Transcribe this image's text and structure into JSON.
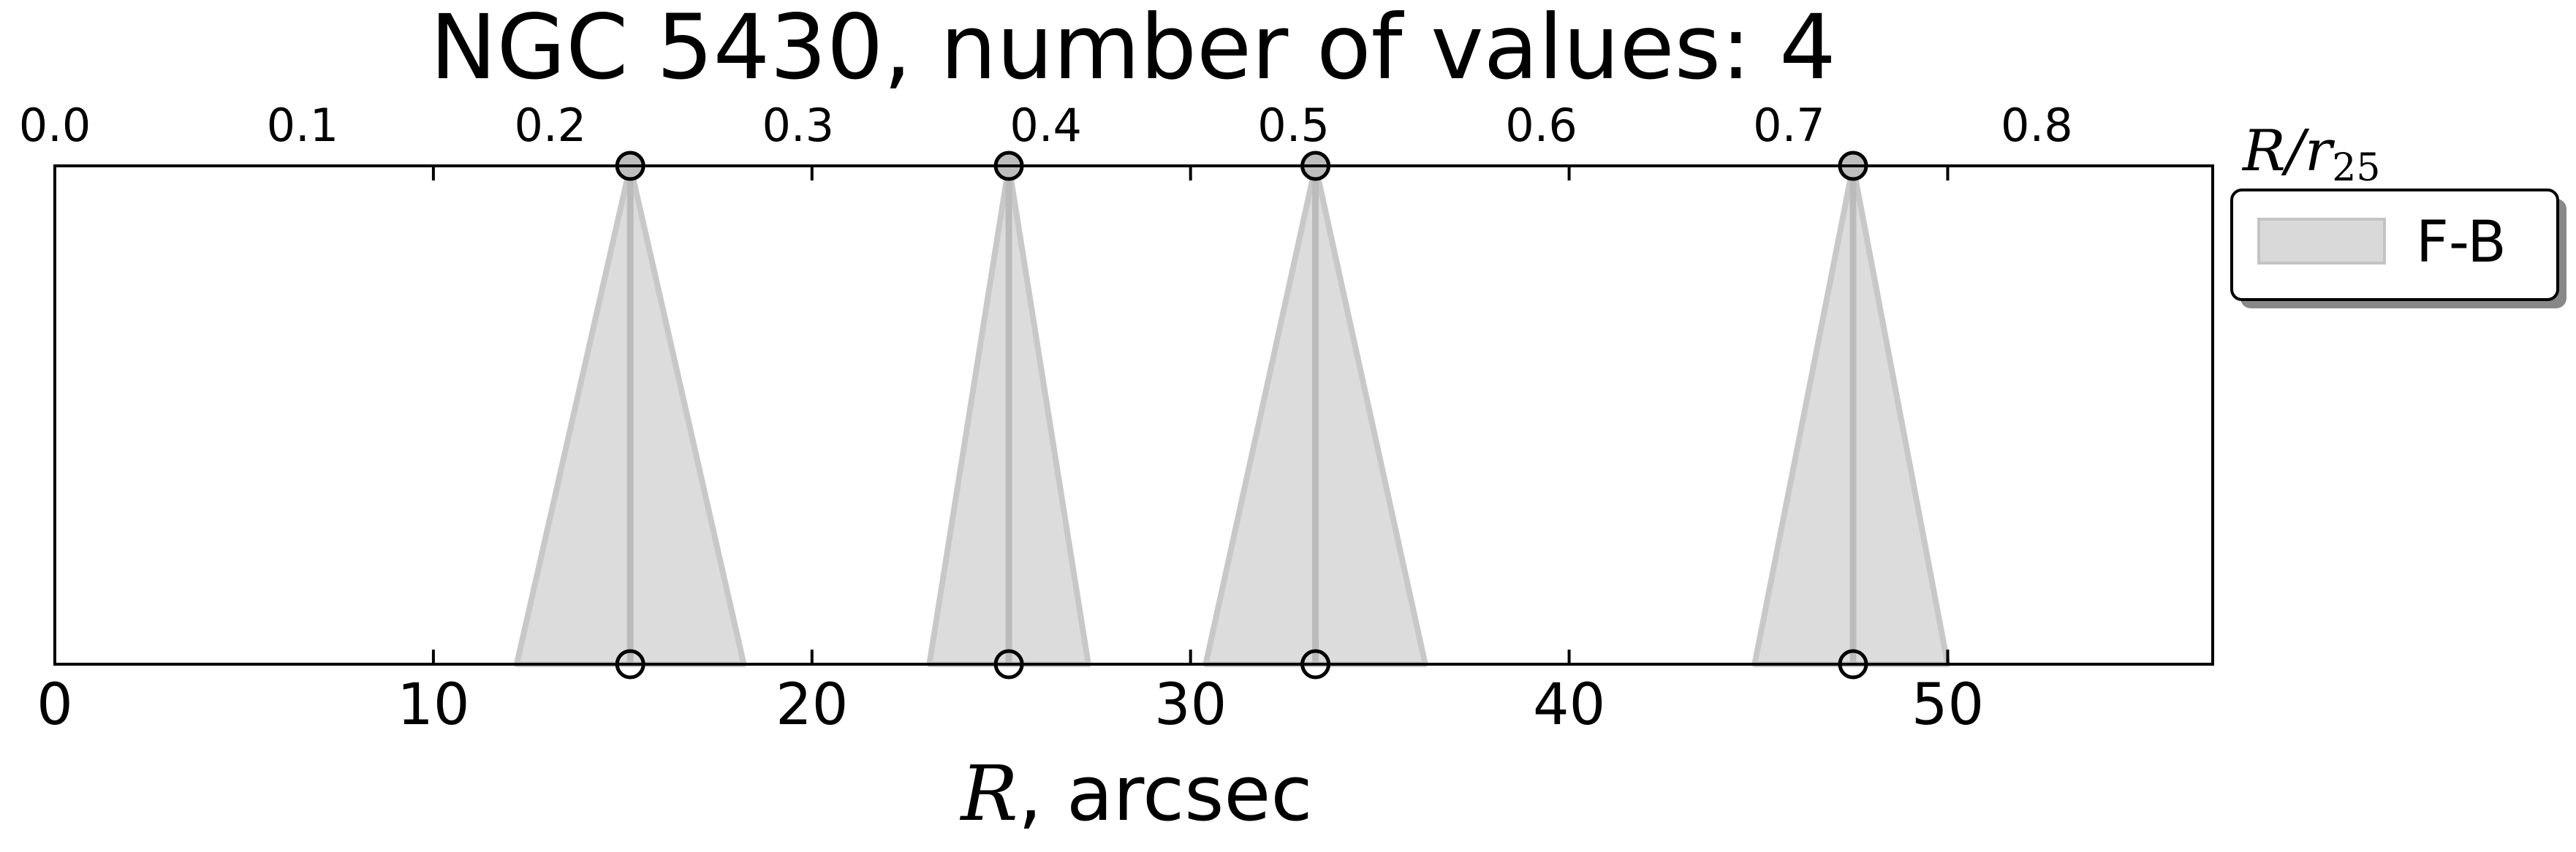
{
  "chart_data": {
    "type": "area",
    "title": "NGC 5430, number of values: 4",
    "xlabel_var": "R",
    "xlabel_rest": ", arcsec",
    "top_axis_label": "R/r",
    "top_axis_label_sub": "25",
    "xlim": [
      0,
      57
    ],
    "x_ticks": [
      0,
      10,
      20,
      30,
      40,
      50
    ],
    "top_xlim": [
      0,
      0.871
    ],
    "top_ticks": [
      "0.0",
      "0.1",
      "0.2",
      "0.3",
      "0.4",
      "0.5",
      "0.6",
      "0.7",
      "0.8"
    ],
    "grid": false,
    "legend_position": "outside-right-top",
    "series": [
      {
        "name": "F-B",
        "color": "#cccccc",
        "line_color": "#bbbbbb",
        "points": [
          {
            "x": 15.2,
            "left": 12.2,
            "right": 18.2
          },
          {
            "x": 25.2,
            "left": 23.1,
            "right": 27.3
          },
          {
            "x": 33.3,
            "left": 30.4,
            "right": 36.2
          },
          {
            "x": 47.5,
            "left": 44.9,
            "right": 50.0
          }
        ]
      }
    ]
  }
}
